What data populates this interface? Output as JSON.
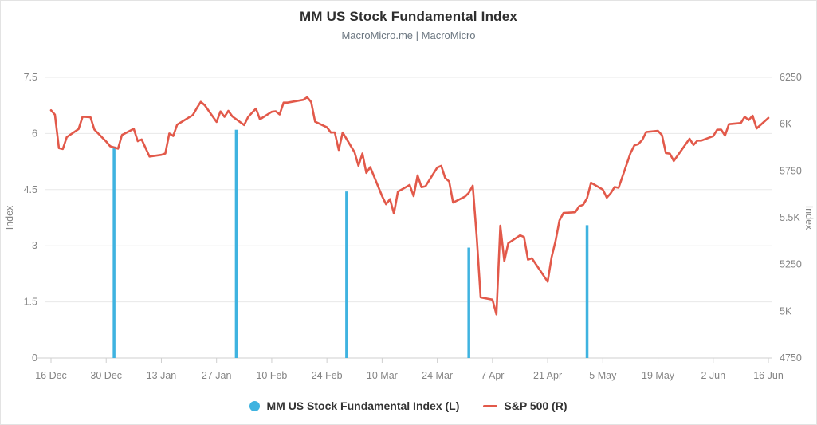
{
  "title": "MM US Stock Fundamental Index",
  "subtitle": "MacroMicro.me | MacroMicro",
  "legend": {
    "items": [
      {
        "label": "MM US Stock Fundamental Index (L)",
        "marker": "circle",
        "color": "#3fb3e0"
      },
      {
        "label": "S&P 500 (R)",
        "marker": "line",
        "color": "#e2594a"
      }
    ]
  },
  "colors": {
    "background": "#ffffff",
    "grid": "#e8e8e8",
    "axis": "#cfcfcf",
    "tick_text": "#848484",
    "title_text": "#2f2f2f",
    "subtitle_text": "#6b7680",
    "legend_text": "#333333",
    "bar": "#3fb3e0",
    "line": "#e2594a"
  },
  "chart_data": {
    "type": "combo",
    "grid": "horizontal",
    "legend_position": "bottom",
    "x_axis": {
      "start": "2024-12-16",
      "end": "2025-06-16",
      "tick_dates": [
        "2024-12-16",
        "2024-12-30",
        "2025-01-13",
        "2025-01-27",
        "2025-02-10",
        "2025-02-24",
        "2025-03-10",
        "2025-03-24",
        "2025-04-07",
        "2025-04-21",
        "2025-05-05",
        "2025-05-19",
        "2025-06-02",
        "2025-06-16"
      ],
      "tick_labels": [
        "16 Dec",
        "30 Dec",
        "13 Jan",
        "27 Jan",
        "10 Feb",
        "24 Feb",
        "10 Mar",
        "24 Mar",
        "7 Apr",
        "21 Apr",
        "5 May",
        "19 May",
        "2 Jun",
        "16 Jun"
      ]
    },
    "y_left": {
      "label": "Index",
      "min": 0,
      "max": 7.5,
      "tick_values": [
        0,
        1.5,
        3,
        4.5,
        6,
        7.5
      ],
      "tick_labels": [
        "0",
        "1.5",
        "3",
        "4.5",
        "6",
        "7.5"
      ]
    },
    "y_right": {
      "label": "Index",
      "min": 4750,
      "max": 6250,
      "tick_values": [
        4750,
        5000,
        5250,
        5500,
        5750,
        6000,
        6250
      ],
      "tick_labels": [
        "4750",
        "5K",
        "5250",
        "5.5K",
        "5750",
        "6K",
        "6250"
      ]
    },
    "series": [
      {
        "name": "MM US Stock Fundamental Index (L)",
        "type": "bar",
        "axis": "left",
        "color": "#3fb3e0",
        "points": [
          [
            "2025-01-01",
            5.65
          ],
          [
            "2025-02-01",
            6.1
          ],
          [
            "2025-03-01",
            4.45
          ],
          [
            "2025-04-01",
            2.95
          ],
          [
            "2025-05-01",
            3.55
          ]
        ]
      },
      {
        "name": "S&P 500 (R)",
        "type": "line",
        "axis": "right",
        "color": "#e2594a",
        "points": [
          [
            "2024-12-16",
            6074
          ],
          [
            "2024-12-17",
            6051
          ],
          [
            "2024-12-18",
            5872
          ],
          [
            "2024-12-19",
            5867
          ],
          [
            "2024-12-20",
            5931
          ],
          [
            "2024-12-23",
            5974
          ],
          [
            "2024-12-24",
            6040
          ],
          [
            "2024-12-26",
            6037
          ],
          [
            "2024-12-27",
            5971
          ],
          [
            "2024-12-30",
            5907
          ],
          [
            "2024-12-31",
            5882
          ],
          [
            "2025-01-02",
            5869
          ],
          [
            "2025-01-03",
            5942
          ],
          [
            "2025-01-06",
            5975
          ],
          [
            "2025-01-07",
            5909
          ],
          [
            "2025-01-08",
            5918
          ],
          [
            "2025-01-10",
            5827
          ],
          [
            "2025-01-13",
            5836
          ],
          [
            "2025-01-14",
            5843
          ],
          [
            "2025-01-15",
            5950
          ],
          [
            "2025-01-16",
            5937
          ],
          [
            "2025-01-17",
            5997
          ],
          [
            "2025-01-21",
            6049
          ],
          [
            "2025-01-22",
            6086
          ],
          [
            "2025-01-23",
            6119
          ],
          [
            "2025-01-24",
            6101
          ],
          [
            "2025-01-27",
            6012
          ],
          [
            "2025-01-28",
            6068
          ],
          [
            "2025-01-29",
            6039
          ],
          [
            "2025-01-30",
            6071
          ],
          [
            "2025-01-31",
            6041
          ],
          [
            "2025-02-03",
            5995
          ],
          [
            "2025-02-04",
            6038
          ],
          [
            "2025-02-05",
            6061
          ],
          [
            "2025-02-06",
            6083
          ],
          [
            "2025-02-07",
            6026
          ],
          [
            "2025-02-10",
            6066
          ],
          [
            "2025-02-11",
            6069
          ],
          [
            "2025-02-12",
            6052
          ],
          [
            "2025-02-13",
            6115
          ],
          [
            "2025-02-14",
            6115
          ],
          [
            "2025-02-18",
            6130
          ],
          [
            "2025-02-19",
            6144
          ],
          [
            "2025-02-20",
            6118
          ],
          [
            "2025-02-21",
            6013
          ],
          [
            "2025-02-24",
            5983
          ],
          [
            "2025-02-25",
            5955
          ],
          [
            "2025-02-26",
            5956
          ],
          [
            "2025-02-27",
            5862
          ],
          [
            "2025-02-28",
            5955
          ],
          [
            "2025-03-03",
            5850
          ],
          [
            "2025-03-04",
            5778
          ],
          [
            "2025-03-05",
            5843
          ],
          [
            "2025-03-06",
            5739
          ],
          [
            "2025-03-07",
            5770
          ],
          [
            "2025-03-10",
            5615
          ],
          [
            "2025-03-11",
            5572
          ],
          [
            "2025-03-12",
            5599
          ],
          [
            "2025-03-13",
            5522
          ],
          [
            "2025-03-14",
            5639
          ],
          [
            "2025-03-17",
            5675
          ],
          [
            "2025-03-18",
            5615
          ],
          [
            "2025-03-19",
            5726
          ],
          [
            "2025-03-20",
            5663
          ],
          [
            "2025-03-21",
            5668
          ],
          [
            "2025-03-24",
            5768
          ],
          [
            "2025-03-25",
            5777
          ],
          [
            "2025-03-26",
            5712
          ],
          [
            "2025-03-27",
            5694
          ],
          [
            "2025-03-28",
            5581
          ],
          [
            "2025-03-31",
            5612
          ],
          [
            "2025-04-01",
            5633
          ],
          [
            "2025-04-02",
            5671
          ],
          [
            "2025-04-03",
            5396
          ],
          [
            "2025-04-04",
            5074
          ],
          [
            "2025-04-07",
            5062
          ],
          [
            "2025-04-08",
            4983
          ],
          [
            "2025-04-09",
            5457
          ],
          [
            "2025-04-10",
            5268
          ],
          [
            "2025-04-11",
            5363
          ],
          [
            "2025-04-14",
            5406
          ],
          [
            "2025-04-15",
            5397
          ],
          [
            "2025-04-16",
            5276
          ],
          [
            "2025-04-17",
            5283
          ],
          [
            "2025-04-21",
            5158
          ],
          [
            "2025-04-22",
            5288
          ],
          [
            "2025-04-23",
            5376
          ],
          [
            "2025-04-24",
            5485
          ],
          [
            "2025-04-25",
            5525
          ],
          [
            "2025-04-28",
            5529
          ],
          [
            "2025-04-29",
            5561
          ],
          [
            "2025-04-30",
            5569
          ],
          [
            "2025-05-01",
            5604
          ],
          [
            "2025-05-02",
            5687
          ],
          [
            "2025-05-05",
            5650
          ],
          [
            "2025-05-06",
            5607
          ],
          [
            "2025-05-07",
            5631
          ],
          [
            "2025-05-08",
            5664
          ],
          [
            "2025-05-09",
            5660
          ],
          [
            "2025-05-12",
            5844
          ],
          [
            "2025-05-13",
            5887
          ],
          [
            "2025-05-14",
            5893
          ],
          [
            "2025-05-15",
            5916
          ],
          [
            "2025-05-16",
            5958
          ],
          [
            "2025-05-19",
            5964
          ],
          [
            "2025-05-20",
            5941
          ],
          [
            "2025-05-21",
            5845
          ],
          [
            "2025-05-22",
            5842
          ],
          [
            "2025-05-23",
            5803
          ],
          [
            "2025-05-27",
            5922
          ],
          [
            "2025-05-28",
            5889
          ],
          [
            "2025-05-29",
            5912
          ],
          [
            "2025-05-30",
            5912
          ],
          [
            "2025-06-02",
            5936
          ],
          [
            "2025-06-03",
            5970
          ],
          [
            "2025-06-04",
            5971
          ],
          [
            "2025-06-05",
            5939
          ],
          [
            "2025-06-06",
            6000
          ],
          [
            "2025-06-09",
            6006
          ],
          [
            "2025-06-10",
            6039
          ],
          [
            "2025-06-11",
            6022
          ],
          [
            "2025-06-12",
            6045
          ],
          [
            "2025-06-13",
            5977
          ],
          [
            "2025-06-16",
            6033
          ]
        ]
      }
    ]
  }
}
